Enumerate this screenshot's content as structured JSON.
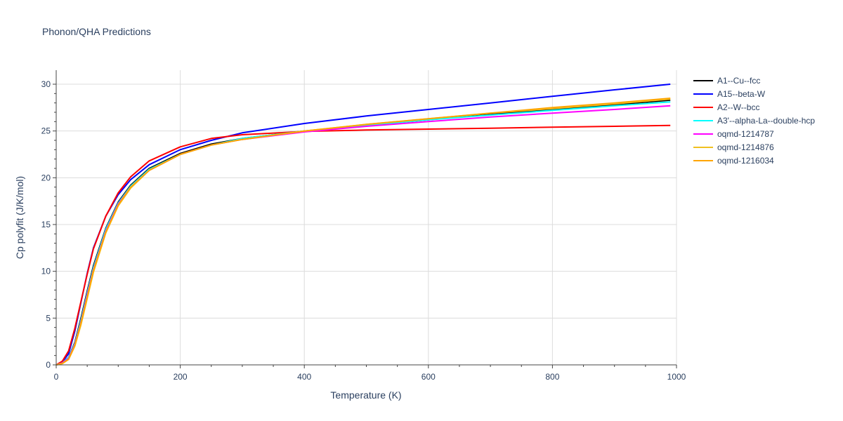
{
  "chart_data": {
    "type": "line",
    "title": "Phonon/QHA Predictions",
    "xlabel": "Temperature (K)",
    "ylabel": "Cp polyfit (J/K/mol)",
    "xlim": [
      0,
      1000
    ],
    "ylim": [
      0,
      31.5
    ],
    "x_ticks": [
      0,
      200,
      400,
      600,
      800,
      1000
    ],
    "y_ticks": [
      0,
      5,
      10,
      15,
      20,
      25,
      30
    ],
    "grid": true,
    "legend_position": "right",
    "series": [
      {
        "name": "A1--Cu--fcc",
        "color": "#000000",
        "x": [
          0,
          10,
          20,
          30,
          40,
          50,
          60,
          80,
          100,
          120,
          150,
          200,
          250,
          300,
          400,
          500,
          600,
          700,
          800,
          900,
          990
        ],
        "y": [
          0,
          0.2,
          0.8,
          2.4,
          5.0,
          7.9,
          10.6,
          14.6,
          17.4,
          19.2,
          21.0,
          22.6,
          23.6,
          24.2,
          25.0,
          25.6,
          26.2,
          26.8,
          27.3,
          27.8,
          28.3
        ]
      },
      {
        "name": "A15--beta-W",
        "color": "#0000ff",
        "x": [
          0,
          10,
          20,
          30,
          40,
          50,
          60,
          80,
          100,
          120,
          150,
          200,
          250,
          300,
          400,
          500,
          600,
          700,
          800,
          900,
          990
        ],
        "y": [
          0,
          0.3,
          1.2,
          3.6,
          6.7,
          9.8,
          12.5,
          15.9,
          18.2,
          19.8,
          21.4,
          23.0,
          24.0,
          24.8,
          25.8,
          26.6,
          27.3,
          28.0,
          28.7,
          29.4,
          30.0
        ]
      },
      {
        "name": "A2--W--bcc",
        "color": "#ff0000",
        "x": [
          0,
          10,
          20,
          30,
          40,
          50,
          60,
          80,
          100,
          120,
          150,
          200,
          250,
          300,
          400,
          500,
          600,
          700,
          800,
          900,
          990
        ],
        "y": [
          0,
          0.4,
          1.5,
          3.9,
          6.8,
          9.7,
          12.4,
          15.9,
          18.4,
          20.1,
          21.8,
          23.3,
          24.2,
          24.6,
          24.95,
          25.1,
          25.2,
          25.3,
          25.4,
          25.5,
          25.6
        ]
      },
      {
        "name": "A3'--alpha-La--double-hcp",
        "color": "#00ffff",
        "x": [
          0,
          10,
          20,
          30,
          40,
          50,
          60,
          80,
          100,
          120,
          150,
          200,
          250,
          300,
          400,
          500,
          600,
          700,
          800,
          900,
          990
        ],
        "y": [
          0,
          0.2,
          0.8,
          2.3,
          4.8,
          7.7,
          10.4,
          14.5,
          17.3,
          19.1,
          20.9,
          22.5,
          23.5,
          24.2,
          25.0,
          25.6,
          26.2,
          26.7,
          27.2,
          27.7,
          28.1
        ]
      },
      {
        "name": "oqmd-1214787",
        "color": "#ff00ff",
        "x": [
          0,
          10,
          20,
          30,
          40,
          50,
          60,
          80,
          100,
          120,
          150,
          200,
          250,
          300,
          400,
          500,
          600,
          700,
          800,
          900,
          990
        ],
        "y": [
          0,
          0.2,
          0.7,
          2.2,
          4.6,
          7.5,
          10.2,
          14.3,
          17.2,
          19.0,
          20.8,
          22.5,
          23.5,
          24.1,
          24.9,
          25.5,
          26.0,
          26.5,
          26.9,
          27.3,
          27.7
        ]
      },
      {
        "name": "oqmd-1214876",
        "color": "#f0c020",
        "x": [
          0,
          10,
          20,
          30,
          40,
          50,
          60,
          80,
          100,
          120,
          150,
          200,
          250,
          300,
          400,
          500,
          600,
          700,
          800,
          900,
          990
        ],
        "y": [
          0,
          0.15,
          0.6,
          2.0,
          4.3,
          7.1,
          9.9,
          14.1,
          17.0,
          18.9,
          20.8,
          22.5,
          23.5,
          24.1,
          25.0,
          25.7,
          26.3,
          26.9,
          27.4,
          27.9,
          28.4
        ]
      },
      {
        "name": "oqmd-1216034",
        "color": "#ffa500",
        "x": [
          0,
          10,
          20,
          30,
          40,
          50,
          60,
          80,
          100,
          120,
          150,
          200,
          250,
          300,
          400,
          500,
          600,
          700,
          800,
          900,
          990
        ],
        "y": [
          0,
          0.15,
          0.6,
          2.1,
          4.5,
          7.3,
          10.1,
          14.2,
          17.1,
          19.0,
          20.8,
          22.5,
          23.5,
          24.1,
          25.0,
          25.7,
          26.3,
          26.9,
          27.5,
          28.0,
          28.5
        ]
      }
    ]
  }
}
